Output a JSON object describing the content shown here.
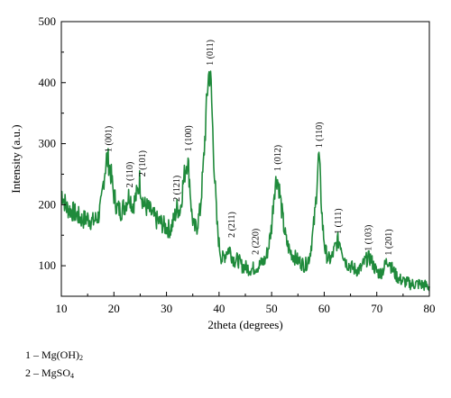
{
  "chart_data": {
    "type": "line",
    "xlabel": "2theta (degrees)",
    "ylabel": "Intensity (a.u.)",
    "xlim": [
      10,
      80
    ],
    "ylim": [
      50,
      500
    ],
    "xticks": [
      10,
      20,
      30,
      40,
      50,
      60,
      70,
      80
    ],
    "yticks": [
      100,
      200,
      300,
      400,
      500
    ],
    "grid": false,
    "line_color": "#1f8a3b",
    "series": [
      {
        "x": [
          10,
          11,
          12,
          13,
          14,
          15,
          16,
          17,
          17.6,
          18.1,
          18.6,
          19.0,
          19.4,
          19.9,
          20.6,
          21.3,
          22.0,
          22.6,
          23.0,
          23.4,
          23.9,
          24.4,
          24.9,
          25.3,
          25.8,
          26.4,
          27.2,
          28.0,
          29.0,
          30.0,
          30.8,
          31.4,
          32.0,
          32.6,
          33.1,
          33.6,
          34.0,
          34.4,
          34.8,
          35.3,
          35.8,
          36.4,
          37.0,
          37.5,
          37.9,
          38.2,
          38.5,
          38.8,
          39.2,
          39.6,
          40.0,
          40.5,
          41.0,
          41.5,
          42.0,
          42.5,
          43.0,
          43.6,
          44.3,
          45.0,
          45.7,
          46.4,
          47.0,
          47.6,
          48.2,
          48.8,
          49.4,
          50.0,
          50.5,
          51.0,
          51.4,
          51.8,
          52.3,
          52.8,
          53.4,
          54.0,
          54.8,
          55.6,
          56.4,
          57.2,
          57.8,
          58.3,
          58.7,
          59.0,
          59.3,
          59.7,
          60.2,
          60.8,
          61.4,
          62.0,
          62.5,
          63.0,
          63.6,
          64.2,
          64.9,
          65.6,
          66.3,
          67.0,
          67.6,
          68.2,
          68.8,
          69.4,
          70.0,
          70.7,
          71.3,
          71.8,
          72.3,
          72.9,
          73.6,
          74.3,
          75.0,
          75.8,
          76.6,
          77.4,
          78.2,
          79.0,
          80.0
        ],
        "y": [
          222,
          195,
          190,
          183,
          175,
          178,
          172,
          180,
          200,
          245,
          276,
          270,
          252,
          220,
          195,
          190,
          198,
          210,
          218,
          200,
          205,
          218,
          240,
          215,
          198,
          195,
          185,
          175,
          170,
          162,
          160,
          175,
          195,
          190,
          230,
          260,
          275,
          240,
          185,
          160,
          165,
          190,
          260,
          340,
          405,
          418,
          390,
          320,
          240,
          170,
          135,
          110,
          115,
          125,
          128,
          115,
          108,
          110,
          100,
          98,
          95,
          95,
          98,
          100,
          105,
          110,
          130,
          165,
          225,
          245,
          230,
          200,
          165,
          140,
          125,
          118,
          110,
          105,
          100,
          115,
          150,
          190,
          250,
          282,
          230,
          165,
          125,
          110,
          112,
          128,
          140,
          140,
          120,
          105,
          100,
          95,
          93,
          95,
          105,
          112,
          112,
          100,
          90,
          88,
          95,
          105,
          110,
          95,
          85,
          78,
          75,
          72,
          70,
          70,
          70,
          68,
          66
        ]
      }
    ],
    "annotations": [
      {
        "text": "1 (001)",
        "x": 19.0,
        "y": 286
      },
      {
        "text": "2 (110)",
        "x": 23.0,
        "y": 228
      },
      {
        "text": "2 (101)",
        "x": 25.4,
        "y": 246
      },
      {
        "text": "2 (121)",
        "x": 32.0,
        "y": 205
      },
      {
        "text": "1 (100)",
        "x": 34.2,
        "y": 287
      },
      {
        "text": "1 (011)",
        "x": 38.3,
        "y": 428
      },
      {
        "text": "2 (211)",
        "x": 42.4,
        "y": 146
      },
      {
        "text": "2 (220)",
        "x": 47.0,
        "y": 118
      },
      {
        "text": "1 (012)",
        "x": 51.2,
        "y": 255
      },
      {
        "text": "1 (110)",
        "x": 59.1,
        "y": 293
      },
      {
        "text": "1 (111)",
        "x": 62.7,
        "y": 152
      },
      {
        "text": "1 (103)",
        "x": 68.4,
        "y": 124
      },
      {
        "text": "1 (201)",
        "x": 72.3,
        "y": 117
      }
    ]
  },
  "legend": [
    {
      "prefix": "1 – Mg(OH)",
      "sub": "2",
      "suffix": ""
    },
    {
      "prefix": "2 – MgSO",
      "sub": "4",
      "suffix": ""
    }
  ]
}
